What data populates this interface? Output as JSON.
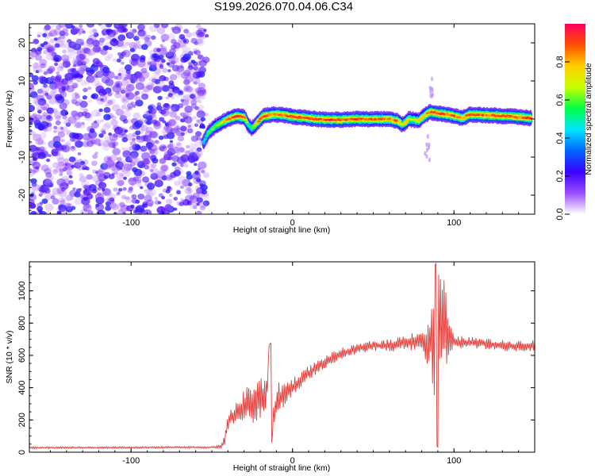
{
  "title": "S199.2026.070.04.06.C34",
  "chart_data": [
    {
      "type": "heatmap",
      "title": "S199.2026.070.04.06.C34",
      "xlabel": "Height of straight line (km)",
      "ylabel": "Frequency (Hz)",
      "xlim": [
        -163,
        150
      ],
      "ylim": [
        -25,
        25
      ],
      "x_ticks": [
        "-100",
        "0",
        "100"
      ],
      "y_ticks": [
        "-20",
        "-10",
        "0",
        "10",
        "20"
      ],
      "noise_region_x_max": -53,
      "ridge": {
        "x": [
          -55,
          -52,
          -48,
          -44,
          -40,
          -35,
          -30,
          -27,
          -25,
          -22,
          -18,
          -12,
          -5,
          0,
          10,
          20,
          30,
          40,
          50,
          60,
          65,
          68,
          70,
          72,
          75,
          78,
          82,
          85,
          90,
          95,
          100,
          105,
          110,
          120,
          130,
          140,
          148
        ],
        "freq": [
          -6.0,
          -3.5,
          -2.0,
          -1.0,
          0.0,
          0.8,
          0.5,
          -1.8,
          -2.5,
          -1.0,
          0.8,
          1.2,
          1.0,
          0.6,
          0.2,
          -0.2,
          -0.2,
          0.0,
          -0.1,
          0.0,
          -0.5,
          -1.5,
          -1.0,
          0.0,
          -0.2,
          -0.5,
          1.0,
          1.8,
          1.5,
          1.2,
          0.8,
          0.2,
          1.2,
          1.0,
          0.8,
          0.5,
          0.2
        ],
        "amp": [
          0.45,
          0.55,
          0.6,
          0.7,
          0.85,
          0.95,
          0.9,
          0.5,
          0.6,
          0.8,
          0.95,
          0.85,
          0.9,
          0.95,
          0.9,
          0.95,
          0.9,
          0.95,
          0.9,
          0.85,
          0.9,
          0.7,
          0.8,
          0.8,
          0.7,
          0.75,
          0.8,
          0.9,
          0.95,
          0.9,
          0.9,
          0.85,
          0.95,
          0.9,
          0.95,
          0.9,
          0.95
        ]
      },
      "colorbar": {
        "label": "Normalized spectral amplitude",
        "range": [
          0,
          1
        ],
        "ticks": [
          "0.0",
          "0.2",
          "0.4",
          "0.6",
          "0.8"
        ],
        "colors": [
          "#ffffff",
          "#9a4dff",
          "#3a00ff",
          "#0066ff",
          "#00e5ff",
          "#00ff44",
          "#c8ff00",
          "#ffd000",
          "#ff5000",
          "#ff0060"
        ]
      }
    },
    {
      "type": "line",
      "xlabel": "Height of straight line (km)",
      "ylabel": "SNR (10 * v/v)",
      "xlim": [
        -163,
        150
      ],
      "ylim": [
        0,
        1180
      ],
      "x_ticks": [
        "-100",
        "0",
        "100"
      ],
      "y_ticks": [
        "0",
        "200",
        "400",
        "600",
        "800",
        "1000"
      ],
      "color": "#e53935",
      "series": [
        {
          "name": "SNR",
          "x": [
            -163,
            -120,
            -80,
            -50,
            -44,
            -42,
            -40,
            -36,
            -32,
            -28,
            -24,
            -20,
            -16,
            -14,
            -12,
            -10,
            -5,
            0,
            5,
            10,
            20,
            30,
            40,
            50,
            60,
            70,
            75,
            80,
            84,
            86,
            88,
            90,
            92,
            94,
            96,
            98,
            100,
            110,
            120,
            130,
            140,
            150
          ],
          "y": [
            28,
            28,
            30,
            30,
            35,
            80,
            200,
            230,
            260,
            310,
            300,
            330,
            360,
            640,
            180,
            320,
            360,
            400,
            450,
            490,
            560,
            610,
            640,
            660,
            660,
            680,
            690,
            690,
            660,
            700,
            740,
            800,
            820,
            830,
            700,
            700,
            680,
            680,
            670,
            660,
            660,
            660
          ],
          "noise_amplitude": [
            6,
            6,
            6,
            6,
            10,
            40,
            60,
            60,
            90,
            110,
            130,
            140,
            150,
            20,
            140,
            110,
            80,
            60,
            55,
            45,
            40,
            35,
            30,
            35,
            40,
            50,
            60,
            70,
            140,
            250,
            400,
            420,
            380,
            300,
            180,
            80,
            45,
            35,
            35,
            35,
            35,
            35
          ]
        }
      ]
    }
  ]
}
